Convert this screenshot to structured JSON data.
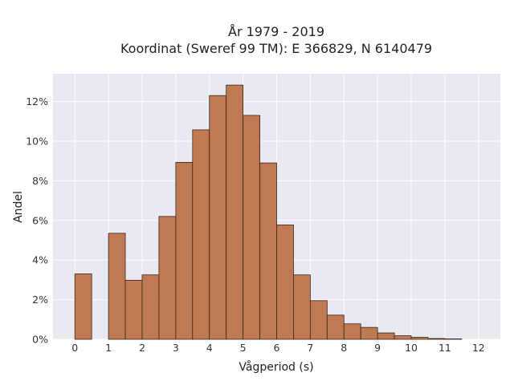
{
  "chart_data": {
    "type": "bar",
    "title_line1": "År 1979 - 2019",
    "title_line2": "Koordinat (Sweref 99 TM): E 366829, N 6140479",
    "xlabel": "Vågperiod (s)",
    "ylabel": "Andel",
    "x_ticks": [
      "0",
      "1",
      "2",
      "3",
      "4",
      "5",
      "6",
      "7",
      "8",
      "9",
      "10",
      "11",
      "12"
    ],
    "y_ticks": [
      "0%",
      "2%",
      "4%",
      "6%",
      "8%",
      "10%",
      "12%"
    ],
    "xlim": [
      -0.65,
      12.65
    ],
    "ylim": [
      0,
      13.4
    ],
    "bin_width": 0.5,
    "bar_color": "#bf7a53",
    "bars": [
      {
        "x": 0.0,
        "value": 3.3
      },
      {
        "x": 0.5,
        "value": 0.0
      },
      {
        "x": 1.0,
        "value": 5.35
      },
      {
        "x": 1.5,
        "value": 2.98
      },
      {
        "x": 2.0,
        "value": 3.25
      },
      {
        "x": 2.5,
        "value": 6.2
      },
      {
        "x": 3.0,
        "value": 8.93
      },
      {
        "x": 3.5,
        "value": 10.57
      },
      {
        "x": 4.0,
        "value": 12.3
      },
      {
        "x": 4.5,
        "value": 12.83
      },
      {
        "x": 5.0,
        "value": 11.3
      },
      {
        "x": 5.5,
        "value": 8.9
      },
      {
        "x": 6.0,
        "value": 5.77
      },
      {
        "x": 6.5,
        "value": 3.25
      },
      {
        "x": 7.0,
        "value": 1.95
      },
      {
        "x": 7.5,
        "value": 1.22
      },
      {
        "x": 8.0,
        "value": 0.78
      },
      {
        "x": 8.5,
        "value": 0.6
      },
      {
        "x": 9.0,
        "value": 0.32
      },
      {
        "x": 9.5,
        "value": 0.18
      },
      {
        "x": 10.0,
        "value": 0.1
      },
      {
        "x": 10.5,
        "value": 0.04
      },
      {
        "x": 11.0,
        "value": 0.02
      },
      {
        "x": 11.5,
        "value": 0.0
      }
    ]
  }
}
